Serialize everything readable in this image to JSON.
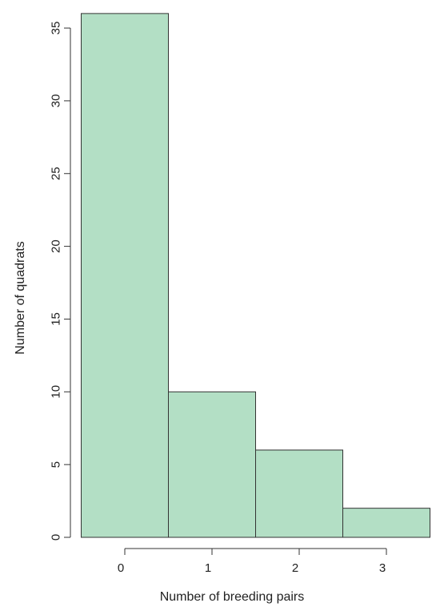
{
  "chart_data": {
    "type": "bar",
    "categories": [
      "0",
      "1",
      "2",
      "3"
    ],
    "values": [
      36,
      10,
      6,
      2
    ],
    "xlabel": "Number of breeding pairs",
    "ylabel": "Number of quadrats",
    "ylim": [
      0,
      35
    ],
    "yticks": [
      "0",
      "5",
      "10",
      "15",
      "20",
      "25",
      "30",
      "35"
    ],
    "grid": false,
    "legend": "none",
    "bar_color": "#b3dfc5",
    "bar_border_color": "#333333"
  }
}
